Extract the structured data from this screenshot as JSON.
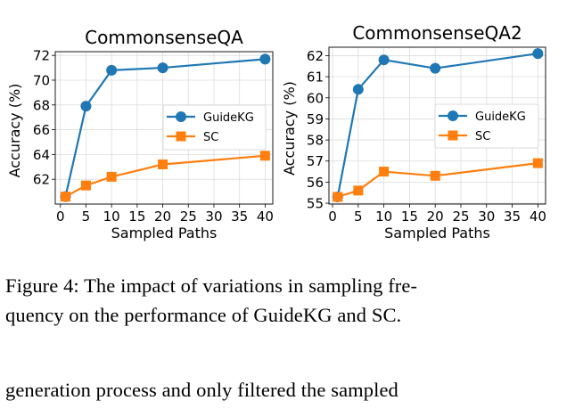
{
  "chart_data": [
    {
      "type": "line",
      "title": "CommonsenseQA",
      "xlabel": "Sampled Paths",
      "ylabel": "Accuracy (%)",
      "x": [
        1,
        5,
        10,
        20,
        40
      ],
      "xticks": [
        0,
        5,
        10,
        15,
        20,
        25,
        30,
        35,
        40
      ],
      "yticks": [
        62,
        64,
        66,
        68,
        70,
        72
      ],
      "xlim": [
        -1,
        41.5
      ],
      "ylim": [
        60.0,
        72.3
      ],
      "grid": true,
      "legend": "center-right",
      "series": [
        {
          "name": "GuideKG",
          "color": "#1f77b4",
          "marker": "circle",
          "values": [
            60.6,
            67.9,
            70.8,
            71.0,
            71.7
          ]
        },
        {
          "name": "SC",
          "color": "#ff7f0e",
          "marker": "square",
          "values": [
            60.6,
            61.5,
            62.2,
            63.2,
            63.9
          ]
        }
      ]
    },
    {
      "type": "line",
      "title": "CommonsenseQA2",
      "xlabel": "Sampled Paths",
      "ylabel": "Accuracy (%)",
      "x": [
        1,
        5,
        10,
        20,
        40
      ],
      "xticks": [
        0,
        5,
        10,
        15,
        20,
        25,
        30,
        35,
        40
      ],
      "yticks": [
        55,
        56,
        57,
        58,
        59,
        60,
        61,
        62
      ],
      "xlim": [
        -0.7,
        41.5
      ],
      "ylim": [
        54.96,
        62.4
      ],
      "grid": true,
      "legend": "center-right",
      "series": [
        {
          "name": "GuideKG",
          "color": "#1f77b4",
          "marker": "circle",
          "values": [
            55.3,
            60.4,
            61.8,
            61.4,
            62.1
          ]
        },
        {
          "name": "SC",
          "color": "#ff7f0e",
          "marker": "square",
          "values": [
            55.3,
            55.6,
            56.5,
            56.3,
            56.9
          ]
        }
      ]
    }
  ],
  "caption": {
    "line1": "Figure 4:  The impact of variations in sampling fre-",
    "line2": "quency on the performance of GuideKG and SC."
  },
  "body_text": "generation process and only filtered the sampled"
}
